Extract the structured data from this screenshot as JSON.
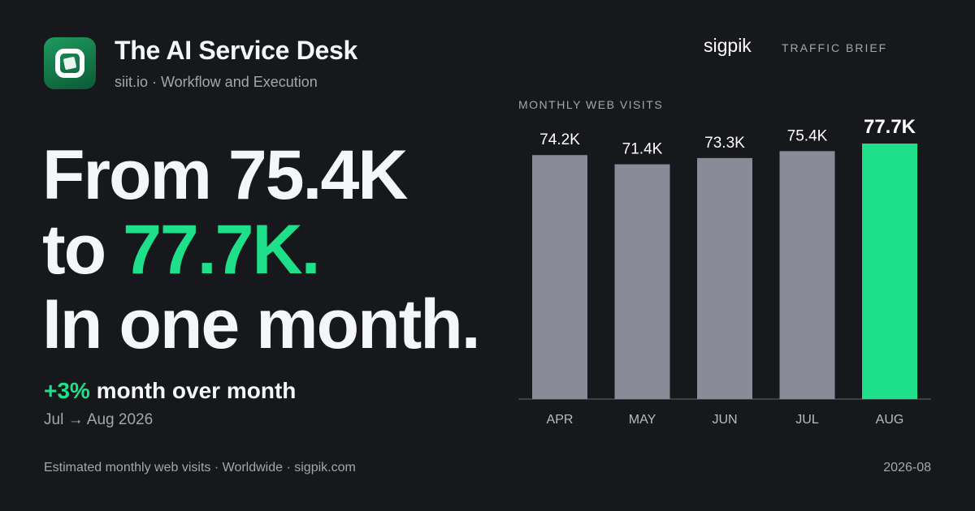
{
  "header": {
    "app_title": "The AI Service Desk",
    "app_subtitle": "siit.io · Workflow and Execution",
    "logo_icon": "siit-logo-icon",
    "brand": "sigpik",
    "report_type": "TRAFFIC BRIEF"
  },
  "headline": {
    "line1": "From 75.4K",
    "line2_prefix": "to ",
    "line2_accent": "77.7K.",
    "line3": "In one month."
  },
  "change": {
    "percent": "+3%",
    "text": " month over month",
    "period": "Jul → Aug 2026"
  },
  "footer": {
    "source": "Estimated monthly web visits · Worldwide · sigpik.com",
    "date": "2026-08"
  },
  "colors": {
    "background": "#17181b",
    "accent": "#1fe08a",
    "bar_default": "#898c98",
    "muted_text": "#a3a7ad"
  },
  "chart_data": {
    "type": "bar",
    "title": "MONTHLY WEB VISITS",
    "categories": [
      "APR",
      "MAY",
      "JUN",
      "JUL",
      "AUG"
    ],
    "values": [
      74.2,
      71.4,
      73.3,
      75.4,
      77.7
    ],
    "value_labels": [
      "74.2K",
      "71.4K",
      "73.3K",
      "75.4K",
      "77.7K"
    ],
    "unit": "K visits",
    "highlight_index": 4,
    "ylim": [
      0,
      80
    ],
    "grid": false,
    "legend": "none"
  }
}
